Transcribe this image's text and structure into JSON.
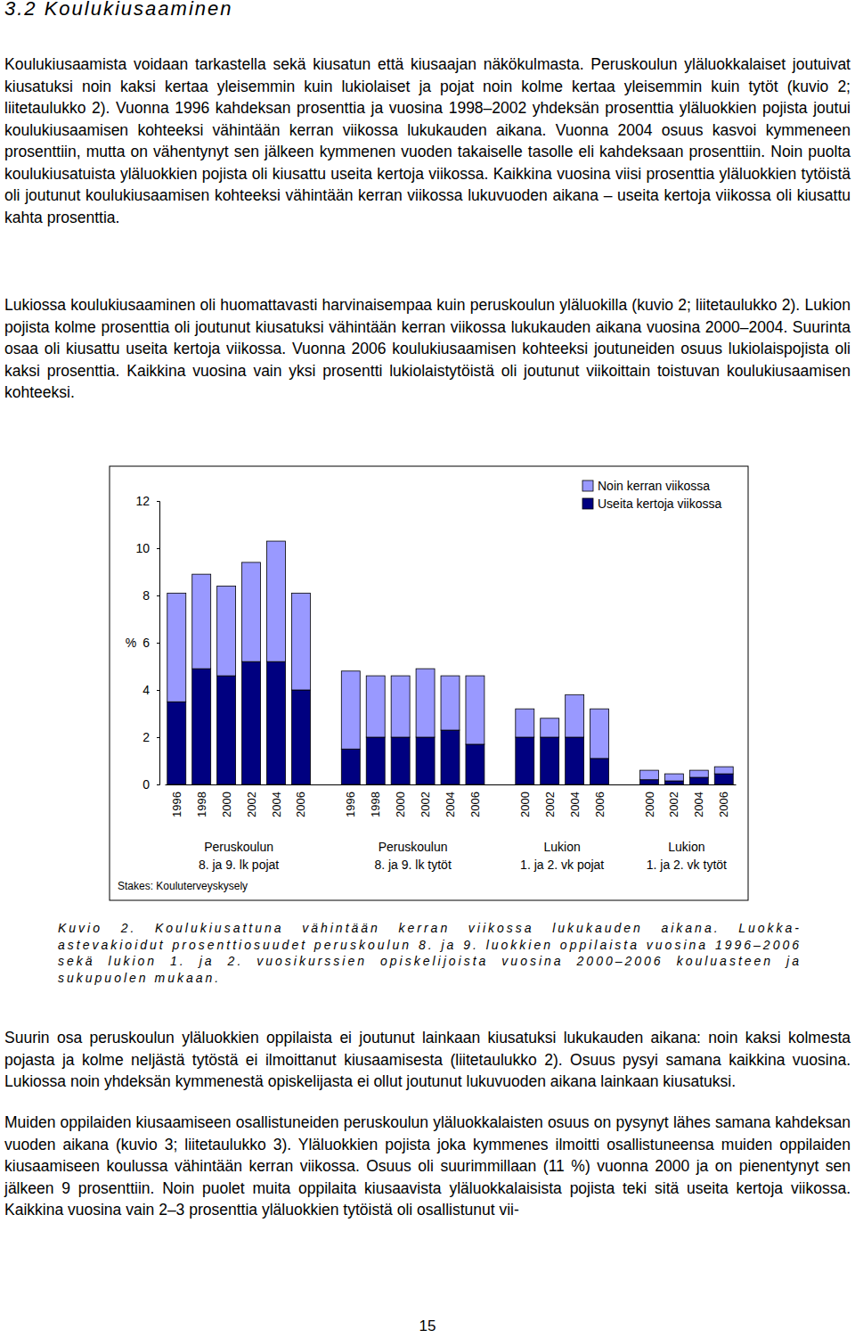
{
  "heading": "3.2 Koulukiusaaminen",
  "paragraphs_before": [
    "Koulukiusaamista voidaan tarkastella sekä kiusatun että kiusaajan näkökulmasta. Peruskoulun yläluokkalaiset joutuivat kiusatuksi noin kaksi kertaa yleisemmin kuin lukiolaiset ja pojat noin kolme kertaa yleisemmin kuin tytöt (kuvio 2; liitetaulukko 2). Vuonna 1996 kahdeksan prosenttia ja vuosina 1998–2002 yhdeksän prosenttia yläluokkien pojista joutui koulukiusaamisen kohteeksi vähintään kerran viikossa lukukauden aikana. Vuonna 2004 osuus kasvoi kymmeneen prosenttiin, mutta on vähentynyt sen jälkeen kymmenen vuoden takaiselle tasolle eli kahdeksaan prosenttiin. Noin puolta koulukiusatuista yläluokkien pojista oli kiusattu useita kertoja viikossa. Kaikkina vuosina viisi prosenttia yläluokkien tytöistä oli joutunut koulukiusaamisen kohteeksi vähintään kerran viikossa lukuvuoden aikana – useita kertoja viikossa oli kiusattu kahta prosenttia.",
    "Lukiossa koulukiusaaminen oli huomattavasti harvinaisempaa kuin peruskoulun yläluokilla (kuvio 2; liitetaulukko 2). Lukion pojista kolme prosenttia oli joutunut kiusatuksi vähintään kerran viikossa lukukauden aikana vuosina 2000–2004. Suurinta osaa oli kiusattu useita kertoja viikossa. Vuonna 2006 koulukiusaamisen kohteeksi joutuneiden osuus lukiolaispojista oli kaksi prosenttia. Kaikkina vuosina vain yksi prosentti lukiolaistytöistä oli joutunut viikoittain toistuvan koulukiusaamisen kohteeksi."
  ],
  "chart_data": {
    "type": "bar",
    "stacked": true,
    "ylabel": "%",
    "ylim": [
      0,
      12
    ],
    "yticks": [
      0,
      2,
      4,
      6,
      8,
      10,
      12
    ],
    "legend": "upper right",
    "categories": [
      "1996",
      "1998",
      "2000",
      "2002",
      "2004",
      "2006",
      null,
      "1996",
      "1998",
      "2000",
      "2002",
      "2004",
      "2006",
      null,
      "2000",
      "2002",
      "2004",
      "2006",
      null,
      "2000",
      "2002",
      "2004",
      "2006"
    ],
    "series": [
      {
        "name": "Useita kertoja viikossa",
        "color": "#000080",
        "values": [
          3.5,
          4.9,
          4.6,
          5.2,
          5.2,
          4.0,
          null,
          1.5,
          2.0,
          2.0,
          2.0,
          2.3,
          1.7,
          null,
          2.0,
          2.0,
          2.0,
          1.1,
          null,
          0.2,
          0.15,
          0.3,
          0.45
        ]
      },
      {
        "name": "Noin kerran viikossa",
        "color": "#9999ff",
        "values": [
          4.6,
          4.0,
          3.8,
          4.2,
          5.1,
          4.1,
          null,
          3.3,
          2.6,
          2.6,
          2.9,
          2.3,
          2.9,
          null,
          1.2,
          0.8,
          1.8,
          2.1,
          null,
          0.4,
          0.3,
          0.3,
          0.3
        ]
      }
    ],
    "groups": [
      [
        "Peruskoulun",
        "8. ja 9. lk pojat"
      ],
      [
        "Peruskoulun",
        "8. ja 9. lk tytöt"
      ],
      [
        "Lukion",
        "1. ja 2. vk pojat"
      ],
      [
        "Lukion",
        "1. ja 2. vk tytöt"
      ]
    ],
    "source": "Stakes: Kouluterveyskysely"
  },
  "caption": "Kuvio 2. Koulukiusattuna vähintään kerran viikossa lukukauden aikana. Luokka-astevakioidut prosenttiosuudet peruskoulun 8. ja 9. luokkien oppilaista vuosina 1996–2006 sekä lukion 1. ja 2. vuosikurssien opiskelijoista vuosina 2000–2006 kouluasteen ja sukupuolen mukaan.",
  "paragraphs_after": [
    "Suurin osa peruskoulun yläluokkien oppilaista ei joutunut lainkaan kiusatuksi lukukauden aikana: noin kaksi kolmesta pojasta ja kolme neljästä tytöstä ei ilmoittanut kiusaamisesta (liitetaulukko 2). Osuus pysyi samana kaikkina vuosina. Lukiossa noin yhdeksän kymmenestä opiskelijasta ei ollut joutunut lukuvuoden aikana lainkaan kiusatuksi.",
    "Muiden oppilaiden kiusaamiseen osallistuneiden peruskoulun yläluokkalaisten osuus on pysynyt lähes samana kahdeksan vuoden aikana (kuvio 3; liitetaulukko 3). Yläluokkien pojista joka kymmenes ilmoitti osallistuneensa muiden oppilaiden kiusaamiseen koulussa vähintään kerran viikossa. Osuus oli suurimmillaan (11 %) vuonna 2000 ja on pienentynyt sen jälkeen 9 prosenttiin. Noin puolet muita oppilaita kiusaavista yläluokkalaisista pojista teki sitä useita kertoja viikossa. Kaikkina vuosina vain 2–3 prosenttia yläluokkien tytöistä oli osallistunut vii-"
  ],
  "page_number": "15"
}
